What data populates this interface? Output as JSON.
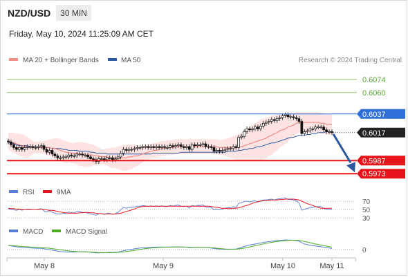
{
  "chart_data": {
    "type": "candlestick",
    "symbol": "NZD/USD",
    "interval": "30 MIN",
    "timestamp": "Friday, May 10, 2024 11:25:09 AM CET",
    "credit": "Research © 2024 Trading Central",
    "x_ticks": [
      "May 8",
      "May 9",
      "May 10",
      "May 11"
    ],
    "price_range": [
      0.5965,
      0.6085
    ],
    "legend": {
      "ma20": "MA 20 + Bollinger Bands",
      "ma50": "MA 50",
      "rsi": "RSI",
      "rsi_ma": "9MA",
      "macd": "MACD",
      "macd_signal": "MACD Signal"
    },
    "levels": [
      {
        "price": 0.6074,
        "label": "0.6074",
        "kind": "target",
        "color": "#8dc26f"
      },
      {
        "price": 0.606,
        "label": "0.6060",
        "kind": "target",
        "color": "#8dc26f"
      },
      {
        "price": 0.6037,
        "label": "0.6037",
        "kind": "pivot",
        "color": "#2e6fd8"
      },
      {
        "price": 0.6017,
        "label": "0.6017",
        "kind": "last",
        "color": "#222222"
      },
      {
        "price": 0.5987,
        "label": "0.5987",
        "kind": "support",
        "color": "#e8141b"
      },
      {
        "price": 0.5973,
        "label": "0.5973",
        "kind": "support",
        "color": "#e8141b"
      }
    ],
    "close": [
      0.6007,
      0.6004,
      0.6001,
      0.5999,
      0.6001,
      0.5999,
      0.6001,
      0.6002,
      0.6002,
      0.6001,
      0.6001,
      0.6002,
      0.6003,
      0.5999,
      0.5996,
      0.5998,
      0.5994,
      0.5992,
      0.599,
      0.599,
      0.5991,
      0.5991,
      0.5993,
      0.5992,
      0.5992,
      0.5994,
      0.5994,
      0.5993,
      0.5993,
      0.5991,
      0.5989,
      0.5988,
      0.5986,
      0.5989,
      0.5989,
      0.5988,
      0.599,
      0.599,
      0.5988,
      0.5989,
      0.5991,
      0.5995,
      0.5999,
      0.5998,
      0.5999,
      0.5999,
      0.6,
      0.6001,
      0.6001,
      0.6002,
      0.6002,
      0.6001,
      0.6002,
      0.6001,
      0.6002,
      0.6001,
      0.6002,
      0.6001,
      0.6001,
      0.6003,
      0.6002,
      0.6003,
      0.6004,
      0.6002,
      0.6001,
      0.6002,
      0.5999,
      0.6004,
      0.6003,
      0.6004,
      0.6004,
      0.6005,
      0.6002,
      0.6002,
      0.6001,
      0.5997,
      0.5998,
      0.5997,
      0.5998,
      0.5999,
      0.6,
      0.6,
      0.6002,
      0.6001,
      0.6012,
      0.6013,
      0.6018,
      0.6021,
      0.602,
      0.6021,
      0.6023,
      0.6021,
      0.6024,
      0.6027,
      0.6028,
      0.6029,
      0.6031,
      0.603,
      0.6032,
      0.6033,
      0.6035,
      0.6036,
      0.6034,
      0.6034,
      0.6033,
      0.6032,
      0.6029,
      0.6016,
      0.6018,
      0.6019,
      0.6021,
      0.6021,
      0.6023,
      0.6023,
      0.6023,
      0.602,
      0.6018,
      0.6018,
      0.6017
    ],
    "ma20": [
      0.6008,
      0.6007,
      0.6006,
      0.6005,
      0.6004,
      0.6003,
      0.6002,
      0.6001,
      0.6001,
      0.6001,
      0.6001,
      0.6001,
      0.6001,
      0.6001,
      0.6001,
      0.6001,
      0.6,
      0.6,
      0.5999,
      0.5998,
      0.5997,
      0.5996,
      0.5996,
      0.5995,
      0.5995,
      0.5995,
      0.5994,
      0.5994,
      0.5993,
      0.5993,
      0.5993,
      0.5993,
      0.5992,
      0.5992,
      0.5991,
      0.5991,
      0.5991,
      0.599,
      0.599,
      0.599,
      0.599,
      0.599,
      0.599,
      0.599,
      0.5991,
      0.5991,
      0.5992,
      0.5992,
      0.5993,
      0.5994,
      0.5995,
      0.5996,
      0.5997,
      0.5998,
      0.5998,
      0.5999,
      0.6,
      0.6,
      0.6001,
      0.6001,
      0.6001,
      0.6002,
      0.6002,
      0.6002,
      0.6002,
      0.6002,
      0.6002,
      0.6002,
      0.6002,
      0.6002,
      0.6002,
      0.6002,
      0.6002,
      0.6002,
      0.6002,
      0.6002,
      0.6002,
      0.6001,
      0.6001,
      0.6001,
      0.6001,
      0.6001,
      0.6001,
      0.6001,
      0.6001,
      0.6002,
      0.6003,
      0.6004,
      0.6005,
      0.6006,
      0.6007,
      0.6008,
      0.6009,
      0.601,
      0.6011,
      0.6013,
      0.6014,
      0.6016,
      0.6017,
      0.6019,
      0.602,
      0.6021,
      0.6023,
      0.6024,
      0.6025,
      0.6027,
      0.6028,
      0.6028,
      0.6028,
      0.6028,
      0.6028,
      0.6028,
      0.6028,
      0.6028,
      0.6027,
      0.6027,
      0.6026,
      0.6026,
      0.6025
    ],
    "ma50": [
      0.6006,
      0.6006,
      0.6005,
      0.6004,
      0.6003,
      0.6003,
      0.6003,
      0.6003,
      0.6002,
      0.6002,
      0.6002,
      0.6001,
      0.6001,
      0.6001,
      0.6001,
      0.6001,
      0.6,
      0.6,
      0.6,
      0.6,
      0.5999,
      0.5999,
      0.5998,
      0.5998,
      0.5998,
      0.5998,
      0.5997,
      0.5997,
      0.5997,
      0.5997,
      0.5996,
      0.5996,
      0.5995,
      0.5995,
      0.5995,
      0.5995,
      0.5994,
      0.5994,
      0.5994,
      0.5994,
      0.5994,
      0.5994,
      0.5994,
      0.5994,
      0.5994,
      0.5994,
      0.5994,
      0.5994,
      0.5994,
      0.5994,
      0.5994,
      0.5994,
      0.5994,
      0.5995,
      0.5995,
      0.5995,
      0.5995,
      0.5995,
      0.5995,
      0.5995,
      0.5995,
      0.5995,
      0.5995,
      0.5996,
      0.5996,
      0.5996,
      0.5996,
      0.5996,
      0.5996,
      0.5996,
      0.5996,
      0.5996,
      0.5996,
      0.5996,
      0.5996,
      0.5996,
      0.5996,
      0.5996,
      0.5996,
      0.5996,
      0.5997,
      0.5997,
      0.5997,
      0.5997,
      0.5998,
      0.5998,
      0.5999,
      0.5999,
      0.6,
      0.6,
      0.6001,
      0.6002,
      0.6002,
      0.6003,
      0.6004,
      0.6005,
      0.6006,
      0.6006,
      0.6007,
      0.6008,
      0.6009,
      0.601,
      0.6011,
      0.6012,
      0.6012,
      0.6013,
      0.6014,
      0.6014,
      0.6014,
      0.6015,
      0.6015,
      0.6016,
      0.6016,
      0.6017,
      0.6017,
      0.6017,
      0.6018,
      0.6018,
      0.6018
    ],
    "bb_width": [
      0.0009,
      0.001,
      0.0011,
      0.0011,
      0.0012,
      0.0012,
      0.0012,
      0.0011,
      0.0009,
      0.0007,
      0.0006,
      0.0006,
      0.0006,
      0.0007,
      0.0008,
      0.0009,
      0.001,
      0.0011,
      0.0012,
      0.0012,
      0.0012,
      0.0012,
      0.0011,
      0.0011,
      0.0011,
      0.0012,
      0.0013,
      0.0013,
      0.0013,
      0.0013,
      0.0012,
      0.0011,
      0.001,
      0.0009,
      0.0008,
      0.0008,
      0.0009,
      0.001,
      0.0011,
      0.0011,
      0.0012,
      0.0013,
      0.0014,
      0.0014,
      0.0014,
      0.0013,
      0.0012,
      0.0011,
      0.001,
      0.0009,
      0.0008,
      0.0008,
      0.0008,
      0.0008,
      0.0008,
      0.0008,
      0.0008,
      0.0008,
      0.0008,
      0.0008,
      0.0008,
      0.0008,
      0.0008,
      0.0008,
      0.0008,
      0.0008,
      0.0008,
      0.0008,
      0.0008,
      0.0008,
      0.0008,
      0.0008,
      0.0008,
      0.0008,
      0.0008,
      0.0008,
      0.0008,
      0.0008,
      0.0008,
      0.0009,
      0.001,
      0.0011,
      0.0012,
      0.0013,
      0.0014,
      0.0015,
      0.0016,
      0.0017,
      0.0018,
      0.0019,
      0.002,
      0.0021,
      0.0022,
      0.0022,
      0.0022,
      0.0021,
      0.0021,
      0.002,
      0.0019,
      0.0018,
      0.0017,
      0.0016,
      0.0015,
      0.0014,
      0.0013,
      0.0012,
      0.0011,
      0.0011,
      0.0011,
      0.0011,
      0.0011,
      0.0011,
      0.0011,
      0.0011,
      0.0011,
      0.0011,
      0.0011,
      0.0011,
      0.0011
    ],
    "rsi": {
      "levels": [
        70,
        50,
        30
      ],
      "value": [
        52,
        50,
        49,
        48,
        50,
        48,
        50,
        51,
        51,
        50,
        50,
        51,
        52,
        47,
        44,
        47,
        43,
        41,
        39,
        39,
        41,
        41,
        44,
        42,
        42,
        45,
        45,
        43,
        43,
        41,
        39,
        38,
        36,
        40,
        40,
        38,
        41,
        41,
        38,
        40,
        43,
        49,
        55,
        53,
        55,
        55,
        56,
        58,
        58,
        59,
        59,
        57,
        59,
        57,
        59,
        57,
        59,
        57,
        57,
        60,
        58,
        60,
        61,
        58,
        57,
        58,
        53,
        60,
        58,
        60,
        60,
        61,
        56,
        56,
        55,
        49,
        51,
        49,
        51,
        53,
        54,
        54,
        57,
        55,
        65,
        66,
        69,
        70,
        68,
        70,
        71,
        68,
        71,
        73,
        73,
        74,
        75,
        73,
        75,
        76,
        77,
        78,
        74,
        74,
        73,
        71,
        66,
        48,
        51,
        52,
        55,
        55,
        57,
        57,
        57,
        53,
        50,
        50,
        49
      ],
      "ma": [
        53,
        52,
        52,
        51,
        51,
        50,
        50,
        50,
        50,
        50,
        50,
        50,
        51,
        50,
        49,
        48,
        48,
        47,
        45,
        44,
        43,
        42,
        41,
        41,
        41,
        41,
        42,
        42,
        43,
        43,
        42,
        42,
        41,
        40,
        40,
        39,
        39,
        39,
        39,
        39,
        40,
        41,
        43,
        45,
        47,
        49,
        51,
        54,
        56,
        57,
        58,
        58,
        58,
        58,
        58,
        58,
        58,
        58,
        58,
        58,
        58,
        58,
        58,
        58,
        58,
        58,
        58,
        58,
        58,
        58,
        58,
        58,
        58,
        58,
        57,
        56,
        55,
        54,
        53,
        53,
        52,
        52,
        53,
        53,
        54,
        56,
        58,
        60,
        62,
        65,
        67,
        69,
        70,
        71,
        72,
        72,
        73,
        73,
        73,
        74,
        74,
        75,
        75,
        75,
        75,
        74,
        73,
        70,
        67,
        64,
        62,
        60,
        57,
        55,
        53,
        53,
        53,
        53,
        53
      ]
    },
    "macd": {
      "zero_label": "0",
      "macd": [
        4.8,
        4.3,
        3.7,
        3.2,
        2.8,
        2.3,
        2.2,
        2.1,
        2,
        1.7,
        1.5,
        1.5,
        1.5,
        1,
        0.3,
        0.0,
        -0.6,
        -1.2,
        -1.8,
        -2.4,
        -2.5,
        -2.8,
        -2.7,
        -2.8,
        -2.9,
        -2.6,
        -2.5,
        -2.6,
        -2.5,
        -2.7,
        -3.1,
        -3.4,
        -3.9,
        -3.8,
        -3.6,
        -3.7,
        -3.4,
        -3.2,
        -3.3,
        -3.1,
        -2.9,
        -2.2,
        -1.3,
        -0.7,
        -0.1,
        0.4,
        0.9,
        1.4,
        1.7,
        2.1,
        2.4,
        2.5,
        2.6,
        2.8,
        3,
        2.9,
        3,
        2.9,
        2.9,
        3,
        3.1,
        3.1,
        3.2,
        3,
        2.8,
        2.8,
        2.3,
        2.5,
        2.5,
        2.6,
        2.5,
        2.5,
        2.3,
        2.1,
        1.8,
        1.3,
        0.9,
        0.6,
        0.4,
        0.3,
        0.3,
        0.3,
        0.5,
        0.5,
        1.5,
        2.4,
        3.5,
        4.5,
        5.3,
        5.9,
        6.5,
        7,
        7.6,
        8.3,
        8.8,
        9.2,
        9.6,
        10,
        10.4,
        10.6,
        10.8,
        11.2,
        11,
        11,
        10.7,
        10.4,
        9.8,
        7.9,
        6.5,
        5.7,
        5.1,
        4.5,
        4.1,
        3.7,
        3.3,
        2.8,
        2.2,
        1.8,
        1.3
      ],
      "signal": [
        4.8,
        4.7,
        4.5,
        4.2,
        3.9,
        3.6,
        3.4,
        3.2,
        3,
        2.8,
        2.6,
        2.4,
        2.2,
        2,
        1.8,
        1.5,
        1.1,
        0.7,
        0.3,
        -0.2,
        -0.6,
        -1.1,
        -1.5,
        -1.8,
        -2.1,
        -2.3,
        -2.4,
        -2.6,
        -2.6,
        -2.7,
        -2.8,
        -3,
        -3.2,
        -3.4,
        -3.5,
        -3.6,
        -3.6,
        -3.5,
        -3.5,
        -3.4,
        -3.2,
        -3,
        -2.7,
        -2.3,
        -1.9,
        -1.4,
        -0.9,
        -0.3,
        0.2,
        0.7,
        1.1,
        1.5,
        1.8,
        2.1,
        2.3,
        2.5,
        2.6,
        2.7,
        2.8,
        2.9,
        2.9,
        3,
        3,
        3,
        3,
        2.9,
        2.8,
        2.7,
        2.6,
        2.5,
        2.5,
        2.5,
        2.4,
        2.3,
        2.1,
        1.9,
        1.6,
        1.3,
        1,
        0.7,
        0.6,
        0.5,
        0.5,
        0.5,
        0.8,
        1.2,
        1.7,
        2.3,
        3,
        3.7,
        4.4,
        5.1,
        5.8,
        6.5,
        7.2,
        7.8,
        8.4,
        8.9,
        9.3,
        9.7,
        10.1,
        10.4,
        10.6,
        10.8,
        10.8,
        10.8,
        10.6,
        10.1,
        9.4,
        8.7,
        7.9,
        7.2,
        6.5,
        5.8,
        5.2,
        4.6,
        3.9,
        3.4,
        2.9
      ]
    }
  }
}
